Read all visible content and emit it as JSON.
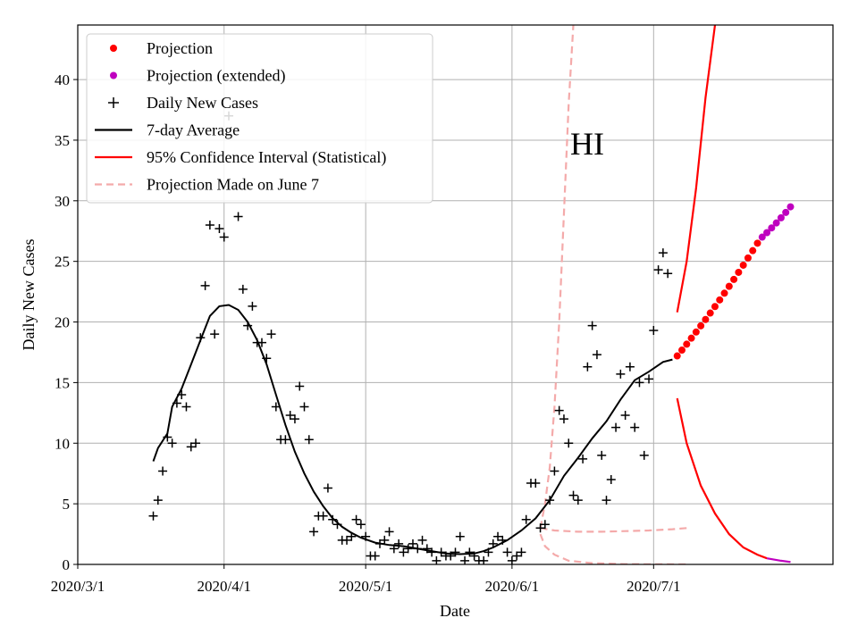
{
  "chart_data": {
    "type": "scatter",
    "annotation": "HI",
    "xlabel": "Date",
    "ylabel": "Daily New Cases",
    "x_start": "2020-03-01",
    "xticks": [
      {
        "label": "2020/3/1",
        "date": "2020-03-01"
      },
      {
        "label": "2020/4/1",
        "date": "2020-04-01"
      },
      {
        "label": "2020/5/1",
        "date": "2020-05-01"
      },
      {
        "label": "2020/6/1",
        "date": "2020-06-01"
      },
      {
        "label": "2020/7/1",
        "date": "2020-07-01"
      }
    ],
    "xlim": [
      "2020-03-01",
      "2020-08-08"
    ],
    "ylim": [
      0,
      44.5
    ],
    "yticks": [
      0,
      5,
      10,
      15,
      20,
      25,
      30,
      35,
      40
    ],
    "grid": true,
    "legend_position": "top-left",
    "legend": [
      {
        "label": "Projection",
        "kind": "dot",
        "color": "#ff0000"
      },
      {
        "label": "Projection (extended)",
        "kind": "dot",
        "color": "#bf00bf"
      },
      {
        "label": "Daily New Cases",
        "kind": "plus",
        "color": "#000000"
      },
      {
        "label": "7-day Average",
        "kind": "line",
        "color": "#000000"
      },
      {
        "label": "95% Confidence Interval (Statistical)",
        "kind": "line",
        "color": "#ff0000"
      },
      {
        "label": "Projection Made on June 7",
        "kind": "dash",
        "color": "#f4aaaa"
      }
    ],
    "series": [
      {
        "name": "Daily New Cases",
        "points": [
          [
            "2020-03-17",
            4
          ],
          [
            "2020-03-18",
            5.3
          ],
          [
            "2020-03-19",
            7.7
          ],
          [
            "2020-03-20",
            10.5
          ],
          [
            "2020-03-21",
            10
          ],
          [
            "2020-03-22",
            13.3
          ],
          [
            "2020-03-23",
            14
          ],
          [
            "2020-03-24",
            13
          ],
          [
            "2020-03-25",
            9.7
          ],
          [
            "2020-03-26",
            10
          ],
          [
            "2020-03-27",
            18.7
          ],
          [
            "2020-03-28",
            23
          ],
          [
            "2020-03-29",
            28
          ],
          [
            "2020-03-30",
            19
          ],
          [
            "2020-03-31",
            27.7
          ],
          [
            "2020-04-01",
            27
          ],
          [
            "2020-04-02",
            37
          ],
          [
            "2020-04-04",
            28.7
          ],
          [
            "2020-04-05",
            22.7
          ],
          [
            "2020-04-06",
            19.7
          ],
          [
            "2020-04-07",
            21.3
          ],
          [
            "2020-04-08",
            18.3
          ],
          [
            "2020-04-09",
            18.3
          ],
          [
            "2020-04-10",
            17
          ],
          [
            "2020-04-11",
            19
          ],
          [
            "2020-04-12",
            13
          ],
          [
            "2020-04-13",
            10.3
          ],
          [
            "2020-04-14",
            10.3
          ],
          [
            "2020-04-15",
            12.3
          ],
          [
            "2020-04-16",
            12
          ],
          [
            "2020-04-17",
            14.7
          ],
          [
            "2020-04-18",
            13
          ],
          [
            "2020-04-19",
            10.3
          ],
          [
            "2020-04-20",
            2.7
          ],
          [
            "2020-04-21",
            4
          ],
          [
            "2020-04-22",
            4
          ],
          [
            "2020-04-23",
            6.3
          ],
          [
            "2020-04-24",
            3.7
          ],
          [
            "2020-04-25",
            3.3
          ],
          [
            "2020-04-26",
            2
          ],
          [
            "2020-04-27",
            2
          ],
          [
            "2020-04-28",
            2.3
          ],
          [
            "2020-04-29",
            3.7
          ],
          [
            "2020-04-30",
            3.3
          ],
          [
            "2020-05-01",
            2.3
          ],
          [
            "2020-05-02",
            0.7
          ],
          [
            "2020-05-03",
            0.7
          ],
          [
            "2020-05-04",
            1.7
          ],
          [
            "2020-05-05",
            2
          ],
          [
            "2020-05-06",
            2.7
          ],
          [
            "2020-05-07",
            1.3
          ],
          [
            "2020-05-08",
            1.7
          ],
          [
            "2020-05-09",
            1
          ],
          [
            "2020-05-10",
            1.3
          ],
          [
            "2020-05-11",
            1.7
          ],
          [
            "2020-05-12",
            1.3
          ],
          [
            "2020-05-13",
            2
          ],
          [
            "2020-05-14",
            1.3
          ],
          [
            "2020-05-15",
            1
          ],
          [
            "2020-05-16",
            0.3
          ],
          [
            "2020-05-17",
            1
          ],
          [
            "2020-05-18",
            0.7
          ],
          [
            "2020-05-19",
            0.7
          ],
          [
            "2020-05-20",
            1
          ],
          [
            "2020-05-21",
            2.3
          ],
          [
            "2020-05-22",
            0.3
          ],
          [
            "2020-05-23",
            1
          ],
          [
            "2020-05-24",
            0.7
          ],
          [
            "2020-05-25",
            0.3
          ],
          [
            "2020-05-26",
            0.3
          ],
          [
            "2020-05-27",
            1
          ],
          [
            "2020-05-28",
            1.7
          ],
          [
            "2020-05-29",
            2.3
          ],
          [
            "2020-05-30",
            2
          ],
          [
            "2020-05-31",
            1
          ],
          [
            "2020-06-01",
            0.3
          ],
          [
            "2020-06-02",
            0.7
          ],
          [
            "2020-06-03",
            1
          ],
          [
            "2020-06-04",
            3.7
          ],
          [
            "2020-06-05",
            6.7
          ],
          [
            "2020-06-06",
            6.7
          ],
          [
            "2020-06-07",
            3
          ],
          [
            "2020-06-08",
            3.3
          ],
          [
            "2020-06-09",
            5.3
          ],
          [
            "2020-06-10",
            7.7
          ],
          [
            "2020-06-11",
            12.7
          ],
          [
            "2020-06-12",
            12
          ],
          [
            "2020-06-13",
            10
          ],
          [
            "2020-06-14",
            5.7
          ],
          [
            "2020-06-15",
            5.3
          ],
          [
            "2020-06-16",
            8.7
          ],
          [
            "2020-06-17",
            16.3
          ],
          [
            "2020-06-18",
            19.7
          ],
          [
            "2020-06-19",
            17.3
          ],
          [
            "2020-06-20",
            9
          ],
          [
            "2020-06-21",
            5.3
          ],
          [
            "2020-06-22",
            7
          ],
          [
            "2020-06-23",
            11.3
          ],
          [
            "2020-06-24",
            15.7
          ],
          [
            "2020-06-25",
            12.3
          ],
          [
            "2020-06-26",
            16.3
          ],
          [
            "2020-06-27",
            11.3
          ],
          [
            "2020-06-28",
            15
          ],
          [
            "2020-06-29",
            9
          ],
          [
            "2020-06-30",
            15.3
          ],
          [
            "2020-07-01",
            19.3
          ],
          [
            "2020-07-02",
            24.3
          ],
          [
            "2020-07-03",
            25.7
          ],
          [
            "2020-07-04",
            24
          ]
        ]
      },
      {
        "name": "7-day Average",
        "points": [
          [
            "2020-03-17",
            8.5
          ],
          [
            "2020-03-18",
            9.6
          ],
          [
            "2020-03-20",
            10.8
          ],
          [
            "2020-03-21",
            13
          ],
          [
            "2020-03-23",
            14.5
          ],
          [
            "2020-03-25",
            16.5
          ],
          [
            "2020-03-27",
            18.5
          ],
          [
            "2020-03-29",
            20.5
          ],
          [
            "2020-03-31",
            21.3
          ],
          [
            "2020-04-02",
            21.4
          ],
          [
            "2020-04-04",
            21
          ],
          [
            "2020-04-06",
            20
          ],
          [
            "2020-04-08",
            18.5
          ],
          [
            "2020-04-10",
            16.5
          ],
          [
            "2020-04-12",
            14
          ],
          [
            "2020-04-14",
            11.5
          ],
          [
            "2020-04-16",
            9.3
          ],
          [
            "2020-04-18",
            7.5
          ],
          [
            "2020-04-20",
            6
          ],
          [
            "2020-04-22",
            4.8
          ],
          [
            "2020-04-24",
            3.8
          ],
          [
            "2020-04-26",
            3.1
          ],
          [
            "2020-04-28",
            2.6
          ],
          [
            "2020-04-30",
            2.2
          ],
          [
            "2020-05-03",
            1.8
          ],
          [
            "2020-05-06",
            1.6
          ],
          [
            "2020-05-09",
            1.5
          ],
          [
            "2020-05-12",
            1.3
          ],
          [
            "2020-05-15",
            1.1
          ],
          [
            "2020-05-18",
            0.9
          ],
          [
            "2020-05-21",
            0.85
          ],
          [
            "2020-05-24",
            0.9
          ],
          [
            "2020-05-26",
            1.1
          ],
          [
            "2020-05-28",
            1.4
          ],
          [
            "2020-05-31",
            2
          ],
          [
            "2020-06-03",
            2.8
          ],
          [
            "2020-06-06",
            3.8
          ],
          [
            "2020-06-09",
            5.3
          ],
          [
            "2020-06-12",
            7.3
          ],
          [
            "2020-06-15",
            8.8
          ],
          [
            "2020-06-18",
            10.4
          ],
          [
            "2020-06-21",
            11.8
          ],
          [
            "2020-06-24",
            13.6
          ],
          [
            "2020-06-27",
            15.2
          ],
          [
            "2020-06-30",
            15.9
          ],
          [
            "2020-07-03",
            16.7
          ],
          [
            "2020-07-05",
            16.9
          ]
        ]
      },
      {
        "name": "Projection",
        "start": "2020-07-06",
        "end": "2020-07-23",
        "y_start": 17.2,
        "y_end": 26.5
      },
      {
        "name": "Projection (extended)",
        "start": "2020-07-24",
        "end": "2020-07-30",
        "y_start": 27,
        "y_end": 29.5
      },
      {
        "name": "95% Confidence Interval (Statistical)",
        "upper": [
          [
            "2020-07-06",
            20.8
          ],
          [
            "2020-07-08",
            25
          ],
          [
            "2020-07-10",
            31
          ],
          [
            "2020-07-12",
            38.5
          ],
          [
            "2020-07-14",
            44.5
          ]
        ],
        "lower": [
          [
            "2020-07-06",
            13.7
          ],
          [
            "2020-07-08",
            10
          ],
          [
            "2020-07-11",
            6.5
          ],
          [
            "2020-07-14",
            4.2
          ],
          [
            "2020-07-17",
            2.5
          ],
          [
            "2020-07-20",
            1.4
          ],
          [
            "2020-07-23",
            0.8
          ],
          [
            "2020-07-25",
            0.5
          ]
        ],
        "lower_extended": [
          [
            "2020-07-25",
            0.5
          ],
          [
            "2020-07-28",
            0.3
          ],
          [
            "2020-07-30",
            0.2
          ]
        ]
      },
      {
        "name": "Projection Made on June 7",
        "upper": [
          [
            "2020-06-07",
            3
          ],
          [
            "2020-06-08",
            5
          ],
          [
            "2020-06-09",
            8
          ],
          [
            "2020-06-10",
            13
          ],
          [
            "2020-06-11",
            20
          ],
          [
            "2020-06-12",
            29
          ],
          [
            "2020-06-13",
            38
          ],
          [
            "2020-06-14",
            44.5
          ]
        ],
        "middle": [
          [
            "2020-06-07",
            3
          ],
          [
            "2020-06-10",
            2.8
          ],
          [
            "2020-06-15",
            2.7
          ],
          [
            "2020-06-20",
            2.7
          ],
          [
            "2020-06-25",
            2.75
          ],
          [
            "2020-06-30",
            2.8
          ],
          [
            "2020-07-05",
            2.9
          ],
          [
            "2020-07-08",
            3
          ]
        ],
        "lower": [
          [
            "2020-06-07",
            2.5
          ],
          [
            "2020-06-08",
            1.5
          ],
          [
            "2020-06-10",
            0.8
          ],
          [
            "2020-06-13",
            0.3
          ],
          [
            "2020-06-18",
            0.1
          ],
          [
            "2020-06-25",
            0.02
          ],
          [
            "2020-07-08",
            0
          ]
        ]
      }
    ]
  }
}
